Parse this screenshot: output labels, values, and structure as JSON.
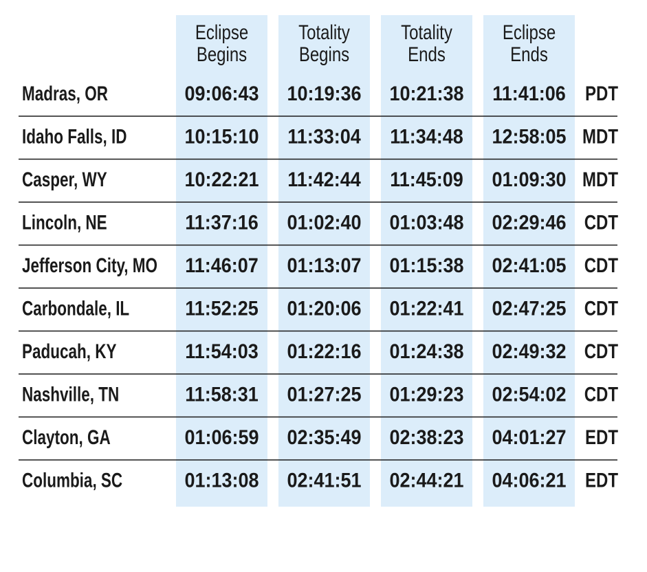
{
  "table": {
    "headers": [
      [
        "Eclipse",
        "Begins"
      ],
      [
        "Totality",
        "Begins"
      ],
      [
        "Totality",
        "Ends"
      ],
      [
        "Eclipse",
        "Ends"
      ]
    ],
    "rows": [
      [
        "Madras, OR",
        "09:06:43",
        "10:19:36",
        "10:21:38",
        "11:41:06",
        "PDT"
      ],
      [
        "Idaho Falls, ID",
        "10:15:10",
        "11:33:04",
        "11:34:48",
        "12:58:05",
        "MDT"
      ],
      [
        "Casper, WY",
        "10:22:21",
        "11:42:44",
        "11:45:09",
        "01:09:30",
        "MDT"
      ],
      [
        "Lincoln, NE",
        "11:37:16",
        "01:02:40",
        "01:03:48",
        "02:29:46",
        "CDT"
      ],
      [
        "Jefferson City, MO",
        "11:46:07",
        "01:13:07",
        "01:15:38",
        "02:41:05",
        "CDT"
      ],
      [
        "Carbondale, IL",
        "11:52:25",
        "01:20:06",
        "01:22:41",
        "02:47:25",
        "CDT"
      ],
      [
        "Paducah, KY",
        "11:54:03",
        "01:22:16",
        "01:24:38",
        "02:49:32",
        "CDT"
      ],
      [
        "Nashville, TN",
        "11:58:31",
        "01:27:25",
        "01:29:23",
        "02:54:02",
        "CDT"
      ],
      [
        "Clayton, GA",
        "01:06:59",
        "02:35:49",
        "02:38:23",
        "04:01:27",
        "EDT"
      ],
      [
        "Columbia, SC",
        "01:13:08",
        "02:41:51",
        "02:44:21",
        "04:06:21",
        "EDT"
      ]
    ]
  }
}
